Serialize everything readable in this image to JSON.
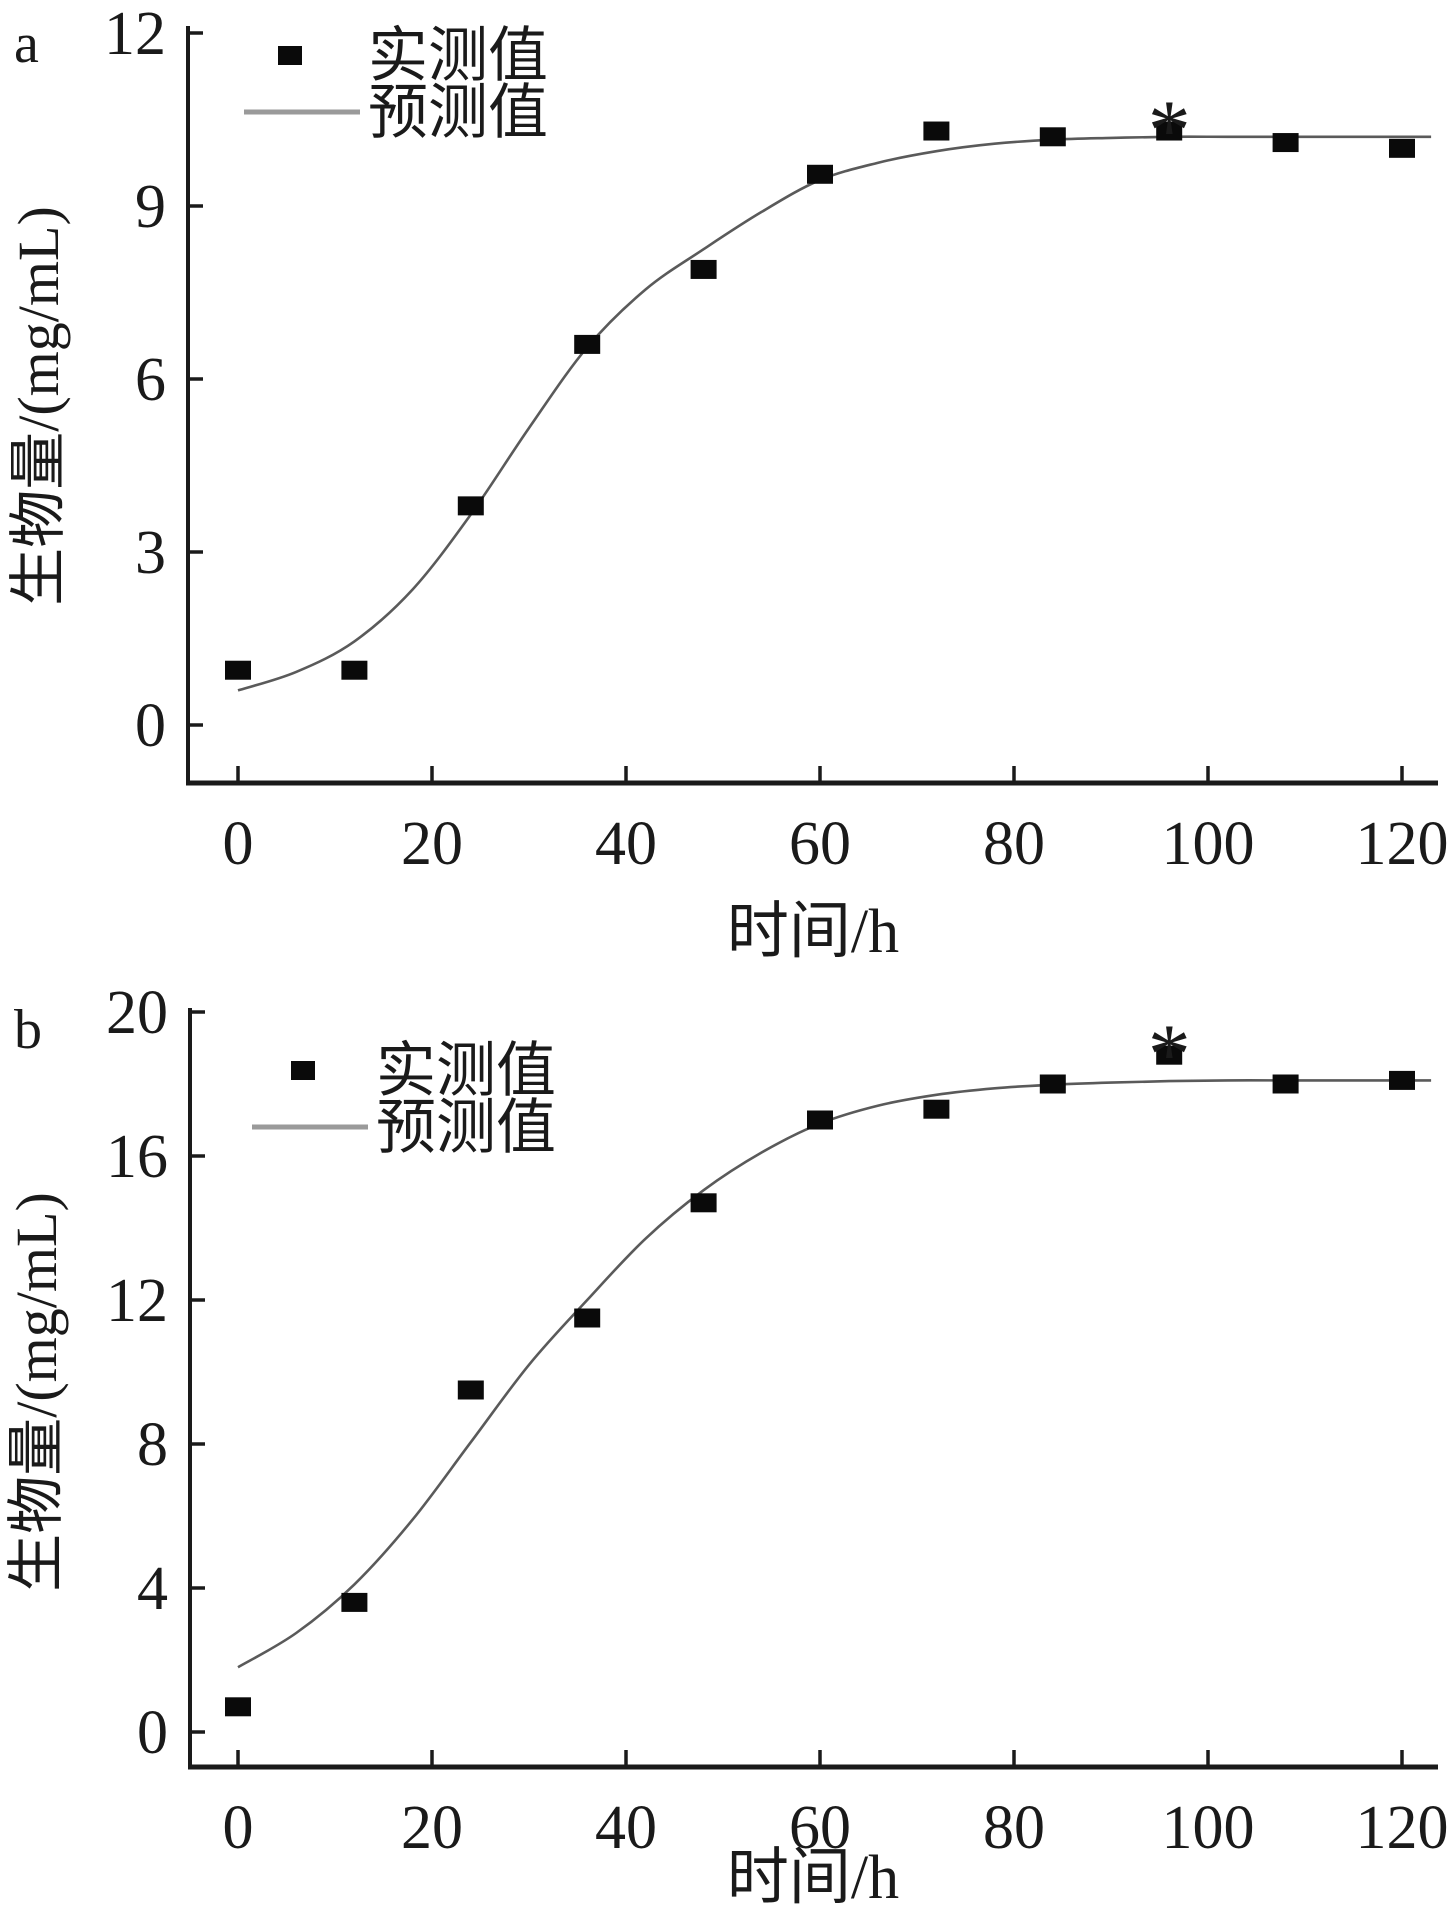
{
  "figure": {
    "description": "Two stacked growth-curve panels (a, b): measured biomass points and fitted predicted curves versus time",
    "background_color": "#ffffff",
    "text_color": "#1a1a1a",
    "marker_color": "#0a0a0a",
    "curve_color": "#5a5a5a",
    "legend_line_color": "#9a9a9a"
  },
  "chart_data": [
    {
      "type": "scatter",
      "panel_label": "a",
      "title": "",
      "xlabel": "时间/h",
      "ylabel": "生物量/(mg/mL)",
      "xlim": [
        0,
        120
      ],
      "ylim": [
        0,
        12
      ],
      "xticks": [
        0,
        20,
        40,
        60,
        80,
        100,
        120
      ],
      "yticks": [
        0,
        3,
        6,
        9,
        12
      ],
      "grid": false,
      "legend_position": "upper-left-inside",
      "legend": [
        {
          "label": "实测值",
          "marker": "filled-square"
        },
        {
          "label": "预测值",
          "marker": "line"
        }
      ],
      "series": [
        {
          "name": "实测值",
          "type": "scatter",
          "marker": "filled-square",
          "x": [
            0,
            12,
            24,
            36,
            48,
            60,
            72,
            84,
            96,
            108,
            120
          ],
          "y": [
            0.95,
            0.95,
            3.8,
            6.6,
            7.9,
            9.55,
            10.3,
            10.2,
            10.3,
            10.1,
            10.0
          ]
        },
        {
          "name": "预测值",
          "type": "line",
          "x": [
            0,
            6,
            12,
            18,
            24,
            30,
            36,
            42,
            48,
            54,
            60,
            66,
            72,
            78,
            84,
            90,
            96,
            102,
            108,
            114,
            123
          ],
          "y": [
            0.6,
            0.92,
            1.45,
            2.35,
            3.65,
            5.15,
            6.55,
            7.55,
            8.25,
            8.9,
            9.45,
            9.75,
            9.95,
            10.08,
            10.15,
            10.18,
            10.2,
            10.2,
            10.2,
            10.2,
            10.2
          ]
        }
      ],
      "annotations": [
        {
          "text": "*",
          "x": 96,
          "y": 10.3,
          "position": "above-point"
        }
      ]
    },
    {
      "type": "scatter",
      "panel_label": "b",
      "title": "",
      "xlabel": "时间/h",
      "ylabel": "生物量/(mg/mL)",
      "xlim": [
        0,
        120
      ],
      "ylim": [
        0,
        20
      ],
      "xticks": [
        0,
        20,
        40,
        60,
        80,
        100,
        120
      ],
      "yticks": [
        0,
        4,
        8,
        12,
        16,
        20
      ],
      "grid": false,
      "legend_position": "upper-left-inside",
      "legend": [
        {
          "label": "实测值",
          "marker": "filled-square"
        },
        {
          "label": "预测值",
          "marker": "line"
        }
      ],
      "series": [
        {
          "name": "实测值",
          "type": "scatter",
          "marker": "filled-square",
          "x": [
            0,
            12,
            24,
            36,
            48,
            60,
            72,
            84,
            96,
            108,
            120
          ],
          "y": [
            0.7,
            3.6,
            9.5,
            11.5,
            14.7,
            17.0,
            17.3,
            18.0,
            18.8,
            18.0,
            18.1
          ]
        },
        {
          "name": "预测值",
          "type": "line",
          "x": [
            0,
            6,
            12,
            18,
            24,
            30,
            36,
            42,
            48,
            54,
            60,
            66,
            72,
            78,
            84,
            90,
            96,
            102,
            108,
            114,
            123
          ],
          "y": [
            1.8,
            2.75,
            4.1,
            5.9,
            8.05,
            10.2,
            12.0,
            13.7,
            15.05,
            16.1,
            16.9,
            17.4,
            17.7,
            17.88,
            17.98,
            18.04,
            18.08,
            18.1,
            18.1,
            18.1,
            18.1
          ]
        }
      ],
      "annotations": [
        {
          "text": "*",
          "x": 96,
          "y": 18.8,
          "position": "above-point"
        }
      ]
    }
  ]
}
